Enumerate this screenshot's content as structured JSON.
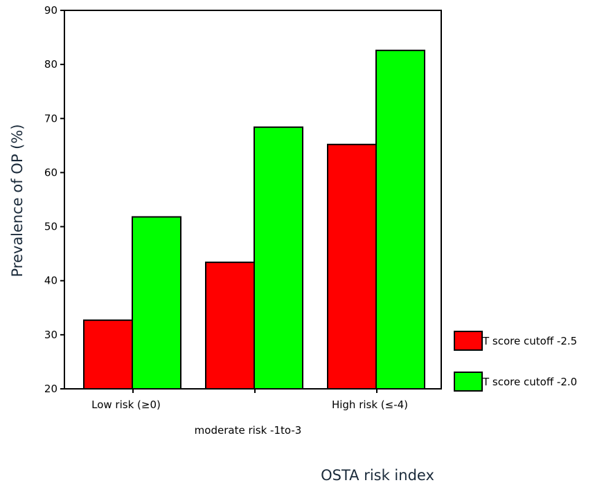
{
  "chart_data": {
    "type": "bar",
    "categories": [
      "Low risk (≥0)",
      "moderate risk -1to-3",
      "High risk (≤-4)"
    ],
    "series": [
      {
        "name": "T score cutoff -2.5",
        "color": "#ff0000",
        "values": [
          32.7,
          43.4,
          65.2
        ]
      },
      {
        "name": "T score cutoff -2.0",
        "color": "#00ff00",
        "values": [
          51.8,
          68.4,
          82.6
        ]
      }
    ],
    "title": "",
    "xlabel": "OSTA risk index",
    "ylabel": "Prevalence of OP (%)",
    "ylim": [
      20,
      90
    ],
    "yticks": [
      20,
      30,
      40,
      50,
      60,
      70,
      80,
      90
    ],
    "grid": false,
    "legend_position": "right"
  }
}
